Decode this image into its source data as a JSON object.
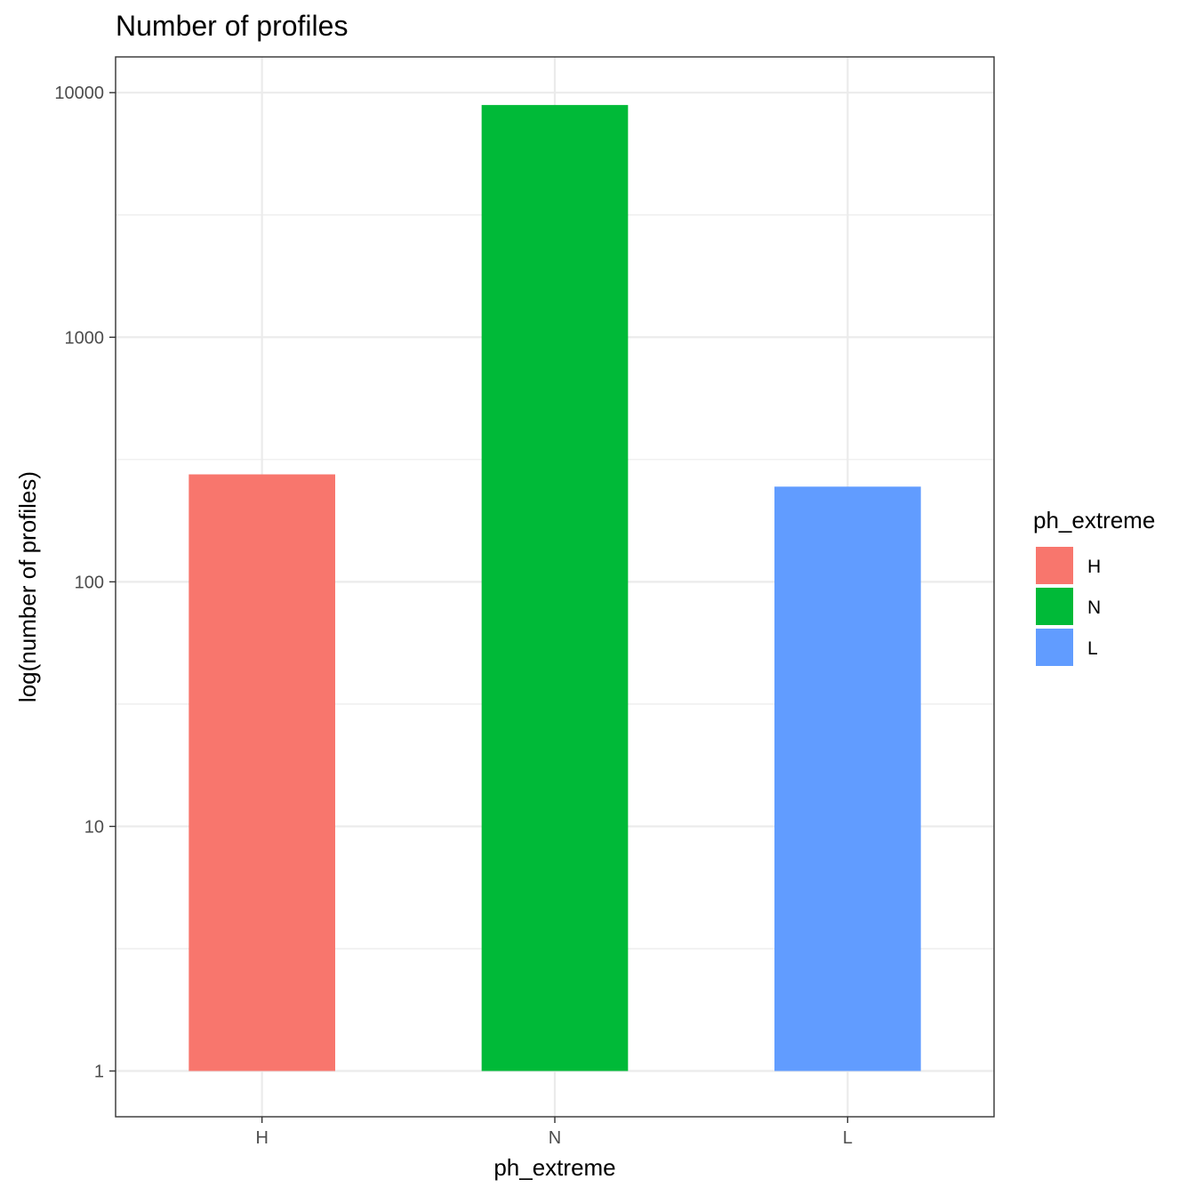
{
  "chart_data": {
    "type": "bar",
    "title": "Number of profiles",
    "xlabel": "ph_extreme",
    "ylabel": "log(number of profiles)",
    "y_scale": "log10",
    "ylim": [
      0.65,
      14000
    ],
    "y_ticks": [
      1,
      10,
      100,
      1000,
      10000
    ],
    "y_tick_labels": [
      "1",
      "10",
      "100",
      "1000",
      "10000"
    ],
    "grid": true,
    "categories": [
      "H",
      "N",
      "L"
    ],
    "values": [
      275,
      8900,
      245
    ],
    "colors": [
      "#F8766D",
      "#00BA38",
      "#619CFF"
    ],
    "legend": {
      "title": "ph_extreme",
      "position": "right",
      "items": [
        "H",
        "N",
        "L"
      ]
    }
  }
}
